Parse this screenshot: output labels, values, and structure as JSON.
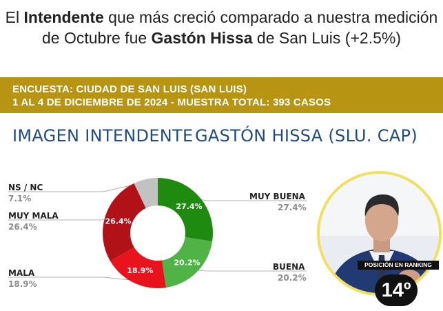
{
  "headline": {
    "part1": "El ",
    "bold1": "Intendente",
    "part2": " que más creció comparado a nuestra medición de Octubre fue ",
    "bold2": "Gastón Hissa",
    "part3": " de San Luis (+2.5%)"
  },
  "banner": {
    "line1": "ENCUESTA: CIUDAD DE SAN LUIS (SAN LUIS)",
    "line2": "1 AL 4 DE DICIEMBRE DE 2024 - MUESTRA TOTAL: 393 CASOS"
  },
  "section": {
    "title_left": "IMAGEN INTENDENTE",
    "title_right": "GASTÓN HISSA (SLU. CAP)"
  },
  "chart_data": {
    "type": "pie",
    "donut": true,
    "categories": [
      "MUY BUENA",
      "BUENA",
      "MALA",
      "MUY MALA",
      "NS / NC"
    ],
    "values": [
      27.4,
      20.2,
      18.9,
      26.4,
      7.1
    ],
    "value_labels": [
      "27.4%",
      "20.2%",
      "18.9%",
      "26.4%",
      "7.1%"
    ],
    "colors": [
      "#1f8a10",
      "#4fb346",
      "#e8131c",
      "#b01218",
      "#c2c2c2"
    ],
    "slice_labels_shown": [
      "27.4%",
      "20.2%",
      "18.9%",
      "26.4%",
      ""
    ]
  },
  "ranking": {
    "label": "POSICIÓN EN RANKING",
    "position": "14º"
  },
  "colors": {
    "banner": "#b89413",
    "title": "#1f4a86",
    "photo_border": "#f2e05a"
  }
}
